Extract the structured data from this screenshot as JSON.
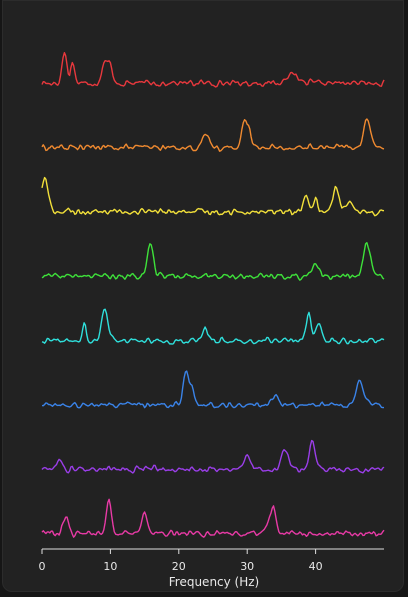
{
  "chart_data": {
    "type": "line",
    "subtype": "stacked-offset-spectra",
    "title": "",
    "xlabel": "Frequency (Hz)",
    "ylabel": "",
    "xlim": [
      0,
      50
    ],
    "xticks": [
      0,
      10,
      20,
      30,
      40
    ],
    "grid": false,
    "legend": "none",
    "background": "#222222",
    "series": [
      {
        "color": "#e8383d",
        "peaks": [
          [
            3.3,
            0.9,
            0.35
          ],
          [
            4.5,
            0.6,
            0.3
          ],
          [
            9.2,
            0.7,
            0.4
          ],
          [
            10.0,
            0.45,
            0.3
          ],
          [
            36.5,
            0.35,
            0.6
          ]
        ]
      },
      {
        "color": "#f08a30",
        "peaks": [
          [
            24.0,
            0.35,
            0.5
          ],
          [
            29.5,
            0.8,
            0.35
          ],
          [
            30.2,
            0.6,
            0.3
          ],
          [
            47.6,
            0.85,
            0.5
          ]
        ]
      },
      {
        "color": "#f2e03a",
        "peaks": [
          [
            0.4,
            1.0,
            0.5
          ],
          [
            38.5,
            0.45,
            0.35
          ],
          [
            40.0,
            0.35,
            0.3
          ],
          [
            43.0,
            0.7,
            0.5
          ],
          [
            45.0,
            0.25,
            0.4
          ]
        ]
      },
      {
        "color": "#3ee23a",
        "peaks": [
          [
            15.7,
            0.75,
            0.35
          ],
          [
            16.2,
            0.4,
            0.3
          ],
          [
            40.0,
            0.35,
            0.5
          ],
          [
            47.5,
            1.0,
            0.5
          ]
        ]
      },
      {
        "color": "#2fe0dc",
        "peaks": [
          [
            6.2,
            0.45,
            0.3
          ],
          [
            9.2,
            0.9,
            0.5
          ],
          [
            23.8,
            0.35,
            0.5
          ],
          [
            39.0,
            0.8,
            0.35
          ],
          [
            40.5,
            0.5,
            0.4
          ]
        ]
      },
      {
        "color": "#3a83e8",
        "peaks": [
          [
            21.0,
            0.9,
            0.35
          ],
          [
            21.8,
            0.5,
            0.4
          ],
          [
            34.0,
            0.25,
            0.5
          ],
          [
            46.5,
            0.75,
            0.5
          ]
        ]
      },
      {
        "color": "#9a3ee8",
        "peaks": [
          [
            2.5,
            0.3,
            0.4
          ],
          [
            30.0,
            0.45,
            0.5
          ],
          [
            35.5,
            0.6,
            0.5
          ],
          [
            39.5,
            0.8,
            0.4
          ]
        ]
      },
      {
        "color": "#e83aa6",
        "peaks": [
          [
            3.5,
            0.5,
            0.4
          ],
          [
            9.8,
            1.0,
            0.35
          ],
          [
            15.0,
            0.6,
            0.4
          ],
          [
            33.5,
            0.6,
            0.5
          ],
          [
            34.0,
            0.35,
            0.3
          ]
        ]
      }
    ]
  }
}
